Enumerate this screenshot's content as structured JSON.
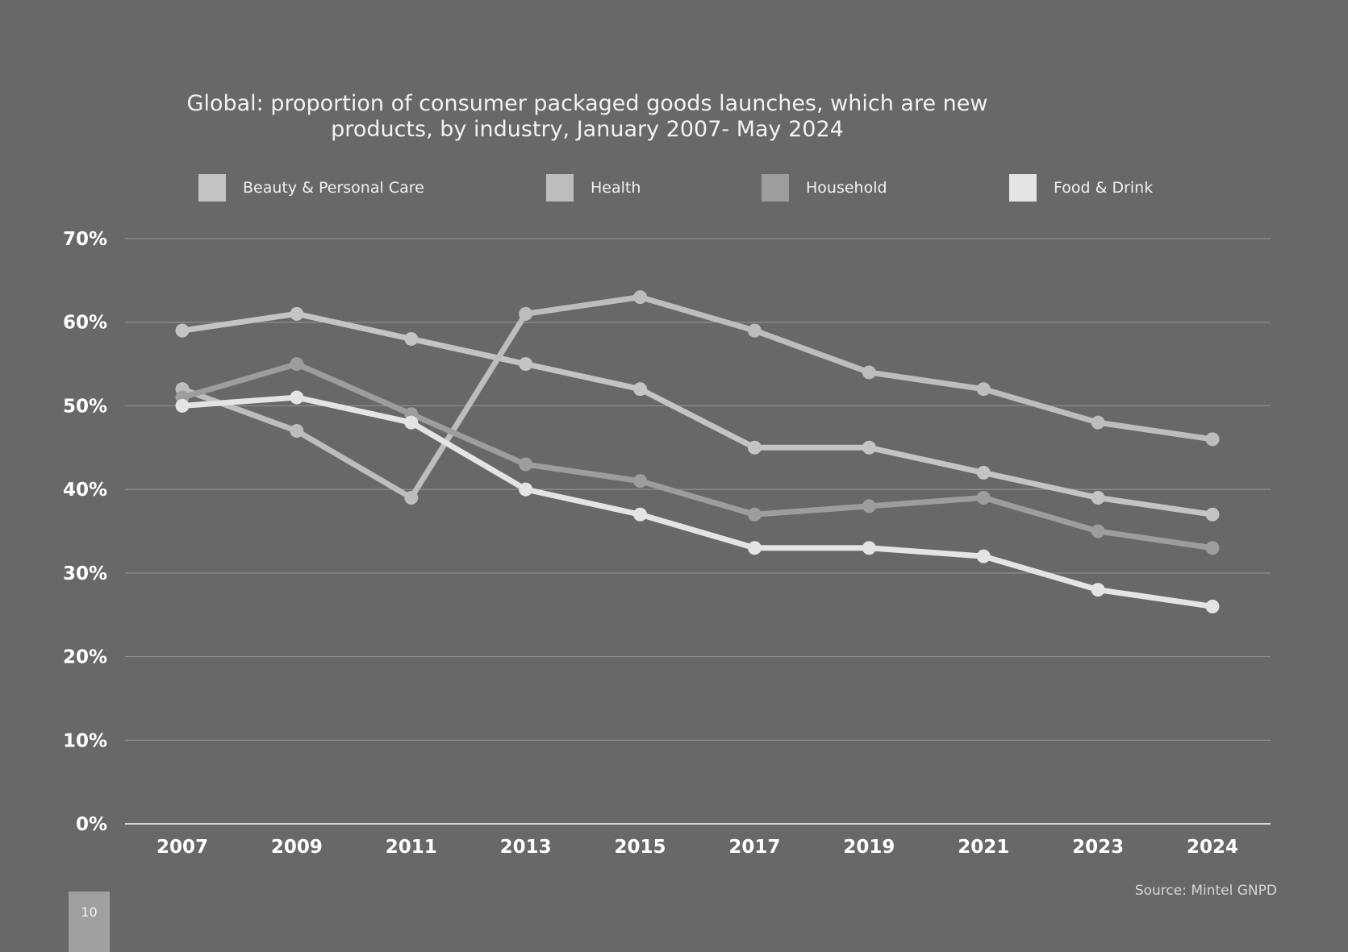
{
  "page": {
    "number": "10"
  },
  "source": "Source: Mintel GNPD",
  "chart_data": {
    "type": "line",
    "title_lines": [
      "Global: proportion of consumer packaged goods launches, which are new",
      "products, by industry, January 2007- May 2024"
    ],
    "categories": [
      "2007",
      "2009",
      "2011",
      "2013",
      "2015",
      "2017",
      "2019",
      "2021",
      "2023",
      "2024"
    ],
    "ylim": [
      0,
      70
    ],
    "yticks": [
      0,
      10,
      20,
      30,
      40,
      50,
      60,
      70
    ],
    "ytick_labels": [
      "0%",
      "10%",
      "20%",
      "30%",
      "40%",
      "50%",
      "60%",
      "70%"
    ],
    "xlabel": "",
    "ylabel": "",
    "grid": true,
    "legend_position": "top",
    "series": [
      {
        "name": "Beauty & Personal Care",
        "color": "#c4c4c6",
        "values": [
          59,
          61,
          58,
          55,
          52,
          45,
          45,
          42,
          39,
          37
        ]
      },
      {
        "name": "Health",
        "color": "#bdbdbf",
        "values": [
          52,
          47,
          39,
          61,
          63,
          59,
          54,
          52,
          48,
          46
        ]
      },
      {
        "name": "Household",
        "color": "#9c9d9f",
        "values": [
          51,
          55,
          49,
          43,
          41,
          37,
          38,
          39,
          35,
          33
        ]
      },
      {
        "name": "Food & Drink",
        "color": "#e4e4e5",
        "values": [
          50,
          51,
          48,
          40,
          37,
          33,
          33,
          32,
          28,
          26
        ]
      }
    ]
  }
}
